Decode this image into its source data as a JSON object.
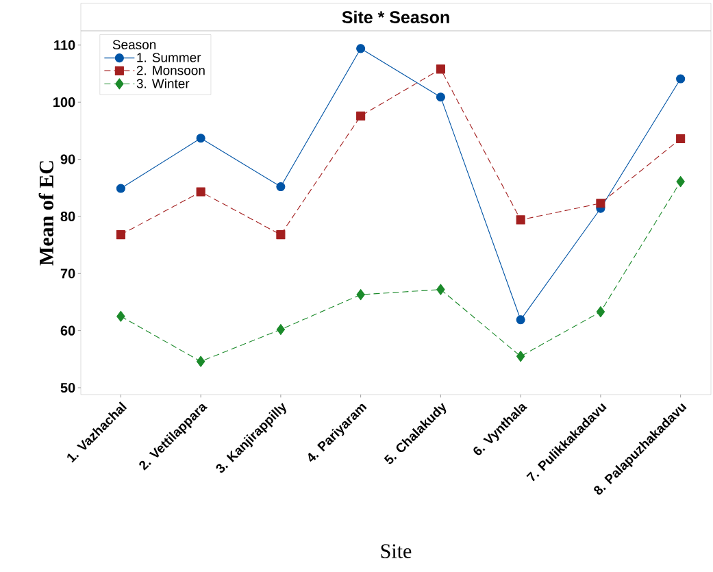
{
  "chart_data": {
    "type": "line",
    "title": "Site * Season",
    "xlabel": "Site",
    "ylabel": "Mean of EC",
    "legend_title": "Season",
    "categories": [
      "1. Vazhachal",
      "2. Vettilappara",
      "3. Kanjirappilly",
      "4. Pariyaram",
      "5. Chalakudy",
      "6. Vynthala",
      "7. Pulikkakadavu",
      "8. Palapuzhakadavu"
    ],
    "series": [
      {
        "name": "1. Summer",
        "color": "#0054a6",
        "marker": "circle",
        "line_style": "solid",
        "values": [
          84.9,
          93.7,
          85.2,
          109.4,
          100.9,
          61.9,
          81.4,
          104.1
        ]
      },
      {
        "name": "2. Monsoon",
        "color": "#a31f1f",
        "marker": "square",
        "line_style": "dashed",
        "values": [
          76.8,
          84.3,
          76.8,
          97.6,
          105.8,
          79.4,
          82.3,
          93.6
        ]
      },
      {
        "name": "3. Winter",
        "color": "#1b8a2a",
        "marker": "diamond",
        "line_style": "dashed",
        "values": [
          62.5,
          54.6,
          60.2,
          66.3,
          67.2,
          55.5,
          63.3,
          86.1
        ]
      }
    ],
    "ylim": [
      48.8,
      112.5
    ],
    "yticks": [
      50,
      60,
      70,
      80,
      90,
      100,
      110
    ],
    "grid": false,
    "legend": "top left"
  }
}
